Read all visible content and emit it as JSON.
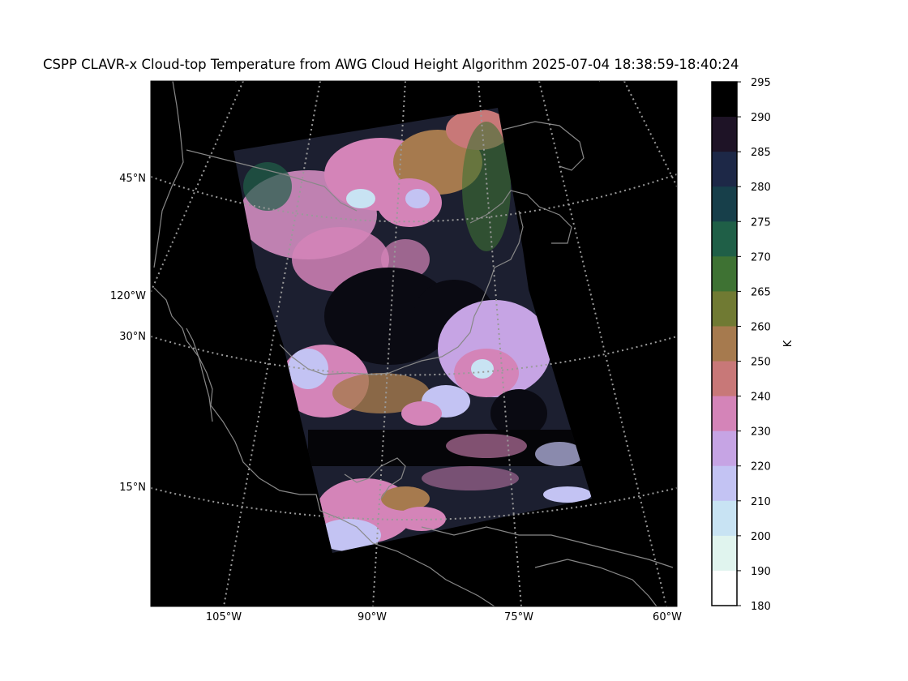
{
  "title": "CSPP CLAVR-x Cloud-top Temperature from AWG Cloud Height Algorithm 2025-07-04 18:38:59-18:40:24",
  "map": {
    "projection": "lambert-conformal",
    "background_color": "#000000",
    "coastline_color": "#888888",
    "gridline_style": "dotted",
    "lat_labels": [
      "45°N",
      "30°N",
      "15°N"
    ],
    "lon_label_left": "120°W",
    "lon_labels_bottom": [
      "105°W",
      "90°W",
      "75°W",
      "60°W"
    ]
  },
  "colorbar": {
    "unit_label": "K",
    "tick_labels": [
      "295",
      "290",
      "285",
      "280",
      "275",
      "270",
      "265",
      "260",
      "250",
      "240",
      "230",
      "220",
      "210",
      "200",
      "190",
      "180"
    ],
    "colors": [
      "#000000",
      "#1e1326",
      "#1d2847",
      "#173f4a",
      "#1f5f47",
      "#3e7233",
      "#707a33",
      "#a67a4e",
      "#c87878",
      "#d484b8",
      "#c6a4e4",
      "#c3c3f3",
      "#c8e3f3",
      "#e0f4ee",
      "#ffffff"
    ]
  }
}
